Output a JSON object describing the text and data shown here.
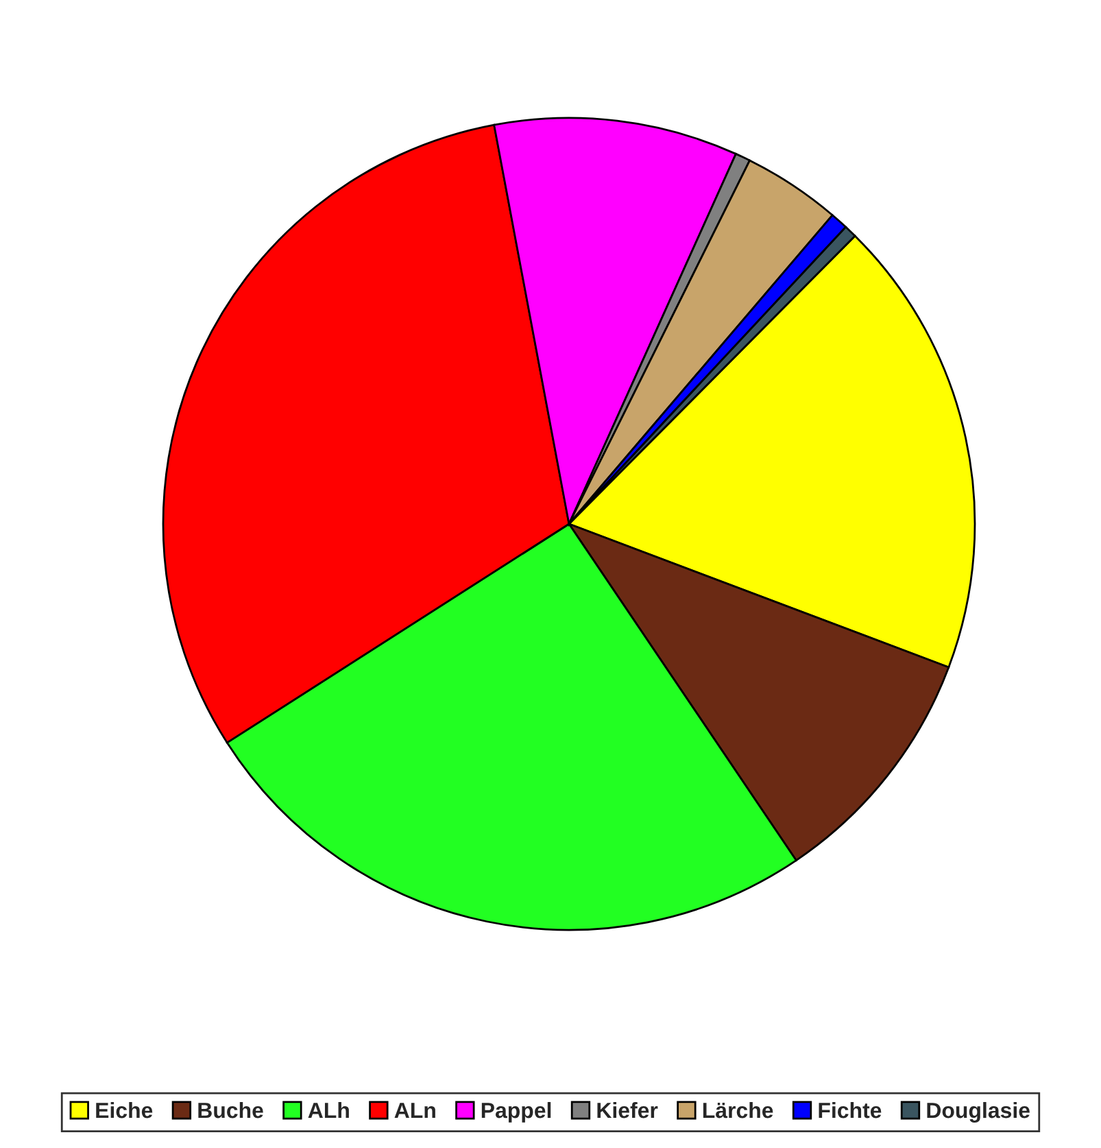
{
  "chart_data": {
    "type": "pie",
    "categories": [
      "Eiche",
      "Buche",
      "ALh",
      "ALn",
      "Pappel",
      "Kiefer",
      "Lärche",
      "Fichte",
      "Douglasie"
    ],
    "values": [
      18.3,
      9.8,
      25.4,
      31.1,
      9.7,
      0.6,
      3.9,
      0.7,
      0.5
    ],
    "colors": [
      "#ffff00",
      "#6b2a14",
      "#22ff22",
      "#ff0000",
      "#ff00ff",
      "#808080",
      "#c8a46a",
      "#0000ff",
      "#3a5560"
    ],
    "legend": "bottom"
  }
}
